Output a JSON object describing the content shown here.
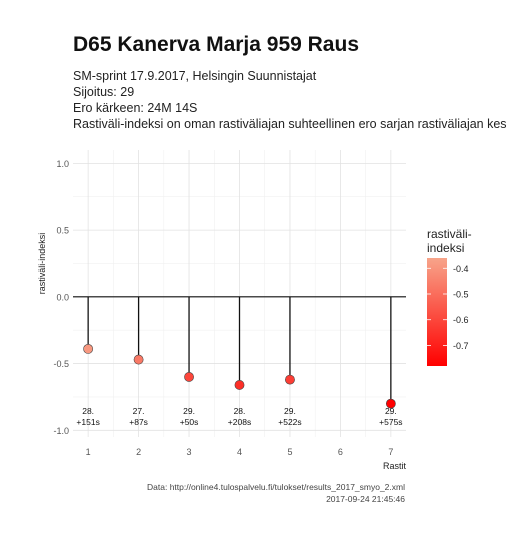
{
  "header": {
    "title": "D65 Kanerva Marja 959 Raus",
    "subtitle_lines": [
      "SM-sprint 17.9.2017, Helsingin Suunnistajat",
      "Sijoitus: 29",
      "Ero kärkeen: 24M 14S",
      "Rastiväli-indeksi on oman rastiväliajan suhteellinen ero sarjan rastiväliajan kes"
    ]
  },
  "caption": {
    "lines": [
      "Data: http://online4.tulospalvelu.fi/tulokset/results_2017_smyo_2.xml",
      "2017-09-24 21:45:46"
    ]
  },
  "chart_data": {
    "type": "scatter",
    "style": "lollipop",
    "xlabel": "Rastit",
    "ylabel": "rastiväli-indeksi",
    "x_ticks": [
      1,
      2,
      3,
      4,
      5,
      6,
      7
    ],
    "y_ticks": [
      -1.0,
      -0.5,
      0.0,
      0.5,
      1.0
    ],
    "y_tick_labels": [
      "-1.0",
      "-0.5",
      "0.0",
      "0.5",
      "1.0"
    ],
    "xlim": [
      0.7,
      7.3
    ],
    "ylim": [
      -1.05,
      1.1
    ],
    "grid": true,
    "points": [
      {
        "x": 1,
        "y": -0.39,
        "rank": "28.",
        "diff": "+151s"
      },
      {
        "x": 2,
        "y": -0.47,
        "rank": "27.",
        "diff": "+87s"
      },
      {
        "x": 3,
        "y": -0.6,
        "rank": "29.",
        "diff": "+50s"
      },
      {
        "x": 4,
        "y": -0.66,
        "rank": "28.",
        "diff": "+208s"
      },
      {
        "x": 5,
        "y": -0.62,
        "rank": "29.",
        "diff": "+522s"
      },
      {
        "x": 7,
        "y": -0.8,
        "rank": "29.",
        "diff": "+575s"
      }
    ],
    "legend": {
      "title_lines": [
        "rastiväli-",
        "indeksi"
      ],
      "placement": "right",
      "range": [
        -0.78,
        -0.36
      ],
      "ticks": [
        -0.4,
        -0.5,
        -0.6,
        -0.7
      ],
      "tick_labels": [
        "-0.4",
        "-0.5",
        "-0.6",
        "-0.7"
      ],
      "color_high": "#f7a48a",
      "color_low": "#ff0000"
    }
  }
}
